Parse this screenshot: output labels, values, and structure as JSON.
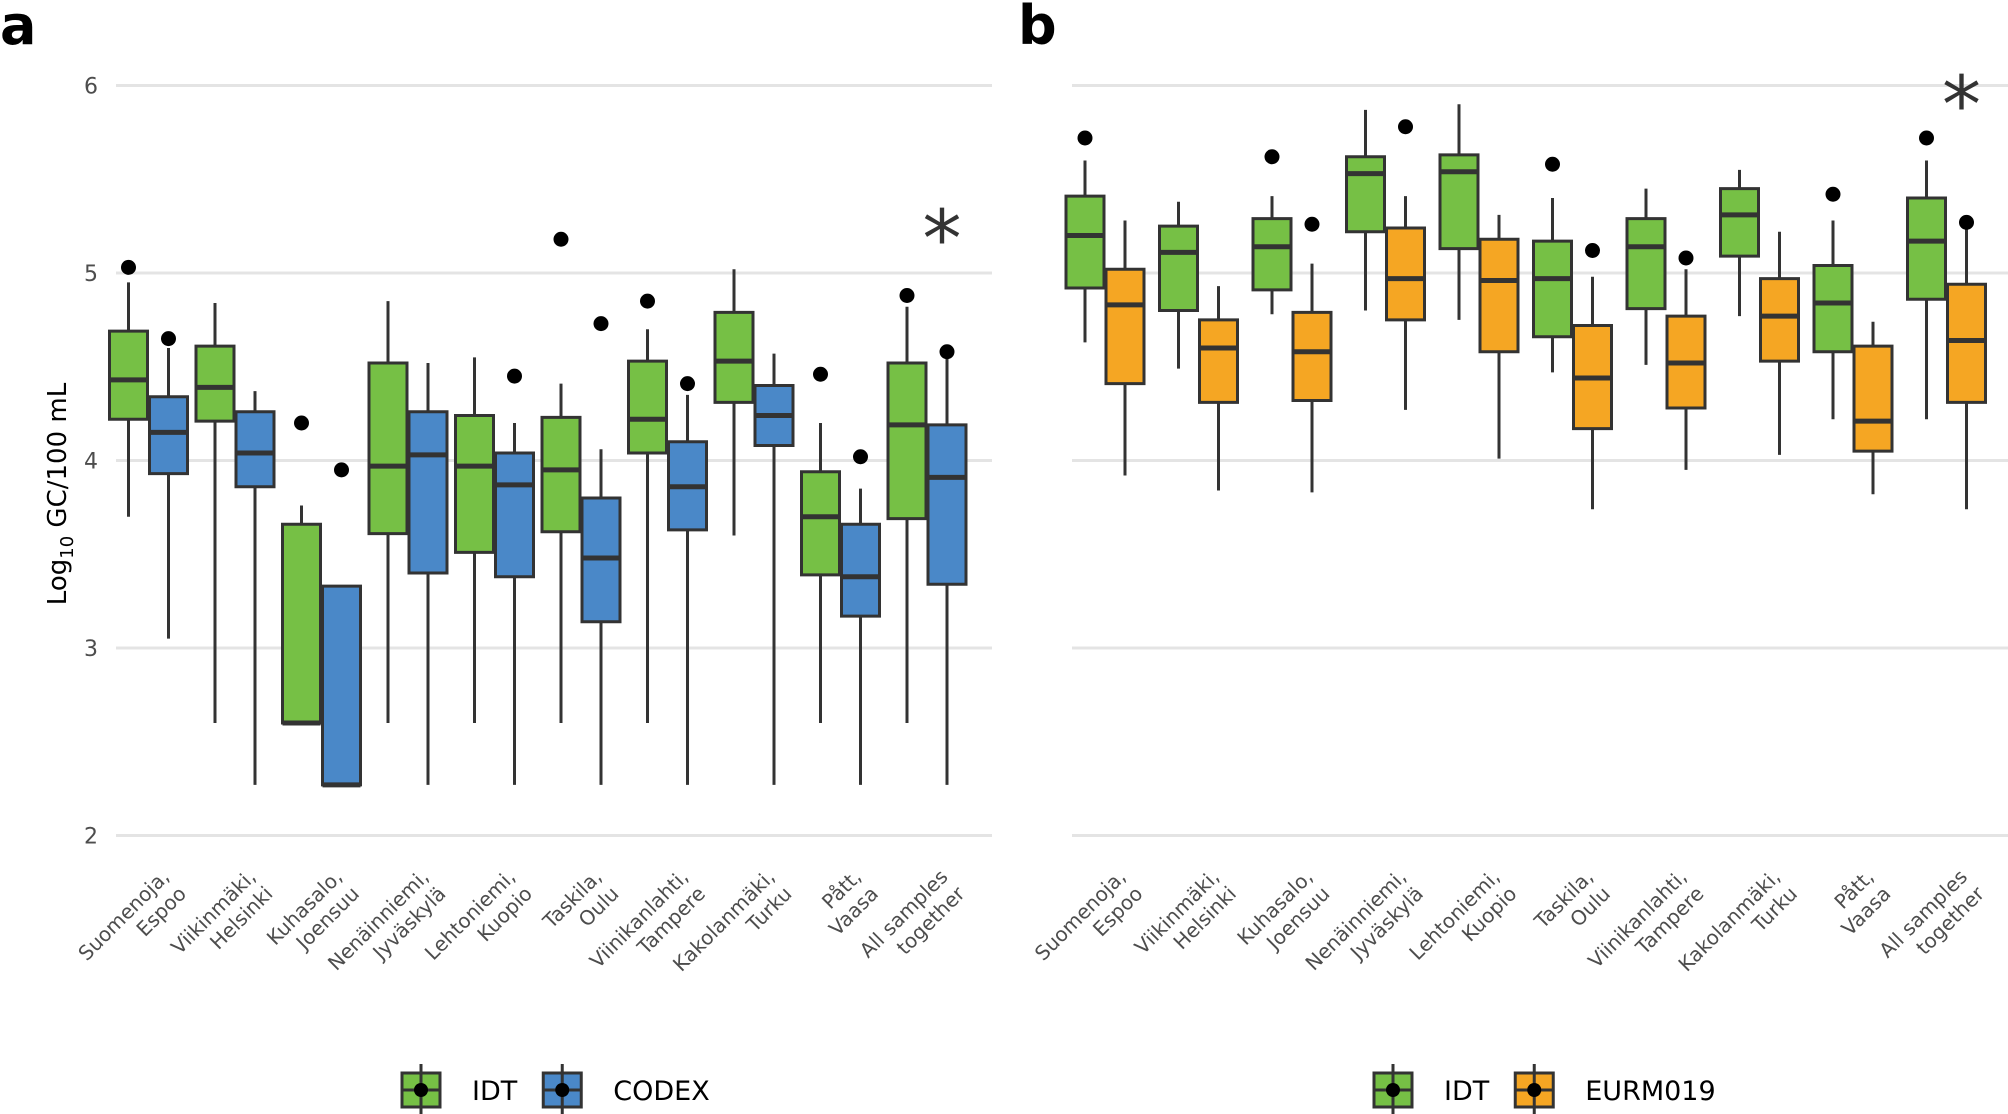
{
  "chart_data": [
    {
      "type": "boxplot",
      "panel_label": "a",
      "ylabel": {
        "prefix": "Log",
        "sub": "10",
        "suffix": " GC/100 mL"
      },
      "ylim": [
        2,
        6.2
      ],
      "yticks": [
        "2",
        "3",
        "4",
        "5",
        "6"
      ],
      "grid": true,
      "legend_position": "bottom",
      "categories": [
        [
          "Suomenoja,",
          "Espoo"
        ],
        [
          "Viikinmäki,",
          "Helsinki"
        ],
        [
          "Kuhasalo,",
          "Joensuu"
        ],
        [
          "Nenäinniemi,",
          "Jyväskylä"
        ],
        [
          "Lehtoniemi,",
          "Kuopio"
        ],
        [
          "Taskila,",
          "Oulu"
        ],
        [
          "Viinikanlahti,",
          "Tampere"
        ],
        [
          "Kakolanmäki,",
          "Turku"
        ],
        [
          "Pått,",
          "Vaasa"
        ],
        [
          "All samples",
          "together"
        ]
      ],
      "annotation": {
        "text": "*",
        "category_index": 9
      },
      "series": [
        {
          "name": "IDT",
          "color": "#76c045",
          "boxes": [
            {
              "whislo": 3.7,
              "q1": 4.22,
              "median": 4.43,
              "q3": 4.69,
              "whishi": 4.95,
              "mean": 5.03
            },
            {
              "whislo": 2.6,
              "q1": 4.21,
              "median": 4.39,
              "q3": 4.61,
              "whishi": 4.84,
              "mean": null
            },
            {
              "whislo": 2.6,
              "q1": 2.6,
              "median": 2.6,
              "q3": 3.66,
              "whishi": 3.76,
              "mean": 4.2
            },
            {
              "whislo": 2.6,
              "q1": 3.61,
              "median": 3.97,
              "q3": 4.52,
              "whishi": 4.85,
              "mean": null
            },
            {
              "whislo": 2.6,
              "q1": 3.51,
              "median": 3.97,
              "q3": 4.24,
              "whishi": 4.55,
              "mean": null
            },
            {
              "whislo": 2.6,
              "q1": 3.62,
              "median": 3.95,
              "q3": 4.23,
              "whishi": 4.41,
              "mean": 5.18
            },
            {
              "whislo": 2.6,
              "q1": 4.04,
              "median": 4.22,
              "q3": 4.53,
              "whishi": 4.7,
              "mean": 4.85
            },
            {
              "whislo": 3.6,
              "q1": 4.31,
              "median": 4.53,
              "q3": 4.79,
              "whishi": 5.02,
              "mean": null
            },
            {
              "whislo": 2.6,
              "q1": 3.39,
              "median": 3.7,
              "q3": 3.94,
              "whishi": 4.2,
              "mean": 4.46
            },
            {
              "whislo": 2.6,
              "q1": 3.69,
              "median": 4.19,
              "q3": 4.52,
              "whishi": 4.82,
              "mean": 4.88
            }
          ]
        },
        {
          "name": "CODEX",
          "color": "#4a88c8",
          "boxes": [
            {
              "whislo": 3.05,
              "q1": 3.93,
              "median": 4.15,
              "q3": 4.34,
              "whishi": 4.6,
              "mean": 4.65
            },
            {
              "whislo": 2.27,
              "q1": 3.86,
              "median": 4.04,
              "q3": 4.26,
              "whishi": 4.37,
              "mean": null
            },
            {
              "whislo": 2.27,
              "q1": 2.27,
              "median": 2.27,
              "q3": 3.33,
              "whishi": 3.33,
              "mean": 3.95
            },
            {
              "whislo": 2.27,
              "q1": 3.4,
              "median": 4.03,
              "q3": 4.26,
              "whishi": 4.52,
              "mean": null
            },
            {
              "whislo": 2.27,
              "q1": 3.38,
              "median": 3.87,
              "q3": 4.04,
              "whishi": 4.2,
              "mean": 4.45
            },
            {
              "whislo": 2.27,
              "q1": 3.14,
              "median": 3.48,
              "q3": 3.8,
              "whishi": 4.06,
              "mean": 4.73
            },
            {
              "whislo": 2.27,
              "q1": 3.63,
              "median": 3.86,
              "q3": 4.1,
              "whishi": 4.35,
              "mean": 4.41
            },
            {
              "whislo": 2.27,
              "q1": 4.08,
              "median": 4.24,
              "q3": 4.4,
              "whishi": 4.57,
              "mean": null
            },
            {
              "whislo": 2.27,
              "q1": 3.17,
              "median": 3.38,
              "q3": 3.66,
              "whishi": 3.85,
              "mean": 4.02
            },
            {
              "whislo": 2.27,
              "q1": 3.34,
              "median": 3.91,
              "q3": 4.19,
              "whishi": 4.55,
              "mean": 4.58
            }
          ]
        }
      ]
    },
    {
      "type": "boxplot",
      "panel_label": "b",
      "ylim": [
        2,
        6.2
      ],
      "grid": true,
      "legend_position": "bottom",
      "categories": [
        [
          "Suomenoja,",
          "Espoo"
        ],
        [
          "Viikinmäki,",
          "Helsinki"
        ],
        [
          "Kuhasalo,",
          "Joensuu"
        ],
        [
          "Nenäinniemi,",
          "Jyväskylä"
        ],
        [
          "Lehtoniemi,",
          "Kuopio"
        ],
        [
          "Taskila,",
          "Oulu"
        ],
        [
          "Viinikanlahti,",
          "Tampere"
        ],
        [
          "Kakolanmäki,",
          "Turku"
        ],
        [
          "Pått,",
          "Vaasa"
        ],
        [
          "All samples",
          "together"
        ]
      ],
      "annotation": {
        "text": "*",
        "category_index": 9
      },
      "series": [
        {
          "name": "IDT",
          "color": "#76c045",
          "boxes": [
            {
              "whislo": 4.63,
              "q1": 4.92,
              "median": 5.2,
              "q3": 5.41,
              "whishi": 5.6,
              "mean": 5.72
            },
            {
              "whislo": 4.49,
              "q1": 4.8,
              "median": 5.11,
              "q3": 5.25,
              "whishi": 5.38,
              "mean": null
            },
            {
              "whislo": 4.78,
              "q1": 4.91,
              "median": 5.14,
              "q3": 5.29,
              "whishi": 5.41,
              "mean": 5.62
            },
            {
              "whislo": 4.8,
              "q1": 5.22,
              "median": 5.53,
              "q3": 5.62,
              "whishi": 5.87,
              "mean": null
            },
            {
              "whislo": 4.75,
              "q1": 5.13,
              "median": 5.54,
              "q3": 5.63,
              "whishi": 5.9,
              "mean": null
            },
            {
              "whislo": 4.47,
              "q1": 4.66,
              "median": 4.97,
              "q3": 5.17,
              "whishi": 5.4,
              "mean": 5.58
            },
            {
              "whislo": 4.51,
              "q1": 4.81,
              "median": 5.14,
              "q3": 5.29,
              "whishi": 5.45,
              "mean": null
            },
            {
              "whislo": 4.77,
              "q1": 5.09,
              "median": 5.31,
              "q3": 5.45,
              "whishi": 5.55,
              "mean": null
            },
            {
              "whislo": 4.22,
              "q1": 4.58,
              "median": 4.84,
              "q3": 5.04,
              "whishi": 5.28,
              "mean": 5.42
            },
            {
              "whislo": 4.22,
              "q1": 4.86,
              "median": 5.17,
              "q3": 5.4,
              "whishi": 5.6,
              "mean": 5.72
            }
          ]
        },
        {
          "name": "EURM019",
          "color": "#f5a623",
          "boxes": [
            {
              "whislo": 3.92,
              "q1": 4.41,
              "median": 4.83,
              "q3": 5.02,
              "whishi": 5.28,
              "mean": null
            },
            {
              "whislo": 3.84,
              "q1": 4.31,
              "median": 4.6,
              "q3": 4.75,
              "whishi": 4.93,
              "mean": null
            },
            {
              "whislo": 3.83,
              "q1": 4.32,
              "median": 4.58,
              "q3": 4.79,
              "whishi": 5.05,
              "mean": 5.26
            },
            {
              "whislo": 4.27,
              "q1": 4.75,
              "median": 4.97,
              "q3": 5.24,
              "whishi": 5.41,
              "mean": 5.78
            },
            {
              "whislo": 4.01,
              "q1": 4.58,
              "median": 4.96,
              "q3": 5.18,
              "whishi": 5.31,
              "mean": null
            },
            {
              "whislo": 3.74,
              "q1": 4.17,
              "median": 4.44,
              "q3": 4.72,
              "whishi": 4.98,
              "mean": 5.12
            },
            {
              "whislo": 3.95,
              "q1": 4.28,
              "median": 4.52,
              "q3": 4.77,
              "whishi": 5.02,
              "mean": 5.08
            },
            {
              "whislo": 4.03,
              "q1": 4.53,
              "median": 4.77,
              "q3": 4.97,
              "whishi": 5.22,
              "mean": null
            },
            {
              "whislo": 3.82,
              "q1": 4.05,
              "median": 4.21,
              "q3": 4.61,
              "whishi": 4.74,
              "mean": null
            },
            {
              "whislo": 3.74,
              "q1": 4.31,
              "median": 4.64,
              "q3": 4.94,
              "whishi": 5.26,
              "mean": 5.27
            }
          ]
        }
      ]
    }
  ]
}
